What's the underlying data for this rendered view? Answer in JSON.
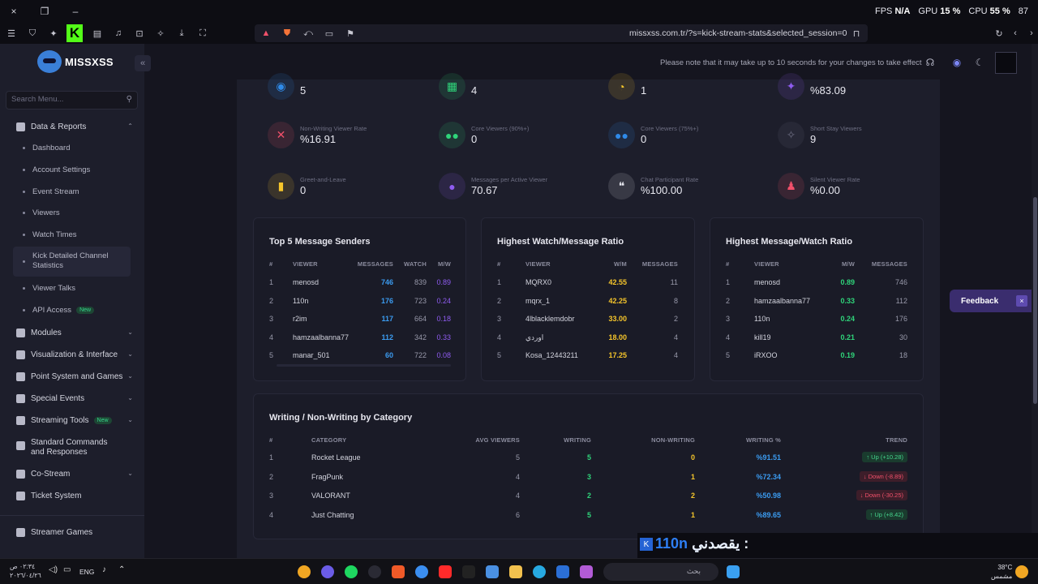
{
  "os_top": {
    "close_icon": "×",
    "window_icon": "❐",
    "minimize_icon": "–",
    "fps_label": "FPS",
    "fps_value": "N/A",
    "gpu_label": "GPU",
    "gpu_value": "15 %",
    "cpu_label": "CPU",
    "cpu_value": "55 %",
    "extra": "87"
  },
  "browser": {
    "url": "missxss.com.tr/?s=kick-stream-stats&selected_session=0"
  },
  "sidebar": {
    "brand": "MISSXSS",
    "collapse_icon": "«",
    "search_placeholder": "Search Menu...",
    "items": [
      {
        "label": "Data & Reports"
      },
      {
        "label": "Dashboard"
      },
      {
        "label": "Account Settings"
      },
      {
        "label": "Event Stream"
      },
      {
        "label": "Viewers"
      },
      {
        "label": "Watch Times"
      },
      {
        "label": "Kick Detailed Channel Statistics"
      },
      {
        "label": "Viewer Talks"
      },
      {
        "label": "API Access",
        "badge": "New"
      },
      {
        "label": "Modules"
      },
      {
        "label": "Visualization & Interface"
      },
      {
        "label": "Point System and Games"
      },
      {
        "label": "Special Events"
      },
      {
        "label": "Streaming Tools",
        "badge": "New"
      },
      {
        "label": "Standard Commands and Responses"
      },
      {
        "label": "Co-Stream"
      },
      {
        "label": "Ticket System"
      },
      {
        "label": "Streamer Games"
      }
    ]
  },
  "header": {
    "notice": "Please note that it may take up to 10 seconds for your changes to take effect"
  },
  "stats": [
    {
      "label": "",
      "value": "5",
      "color": "#2f8ae8"
    },
    {
      "label": "",
      "value": "4",
      "color": "#2fd47a"
    },
    {
      "label": "",
      "value": "1",
      "color": "#f5c52b"
    },
    {
      "label": "",
      "value": "%83.09",
      "color": "#8f5cf0"
    },
    {
      "label": "Non-Writing Viewer Rate",
      "value": "%16.91",
      "color": "#f0506a"
    },
    {
      "label": "Core Viewers (90%+)",
      "value": "0",
      "color": "#2fd47a"
    },
    {
      "label": "Core Viewers (75%+)",
      "value": "0",
      "color": "#2f8ae8"
    },
    {
      "label": "Short Stay Viewers",
      "value": "9",
      "color": "#6b6c80"
    },
    {
      "label": "Greet-and-Leave",
      "value": "0",
      "color": "#f5c52b"
    },
    {
      "label": "Messages per Active Viewer",
      "value": "70.67",
      "color": "#8f5cf0"
    },
    {
      "label": "Chat Participant Rate",
      "value": "%100.00",
      "color": "#e6e6ee"
    },
    {
      "label": "Silent Viewer Rate",
      "value": "%0.00",
      "color": "#f0506a"
    }
  ],
  "top_senders": {
    "title": "Top 5 Message Senders",
    "headers": [
      "#",
      "VIEWER",
      "MESSAGES",
      "WATCH",
      "M/W"
    ],
    "rows": [
      {
        "rank": "1",
        "viewer": "menosd",
        "messages": "746",
        "watch": "839",
        "mw": "0.89"
      },
      {
        "rank": "2",
        "viewer": "110n",
        "messages": "176",
        "watch": "723",
        "mw": "0.24"
      },
      {
        "rank": "3",
        "viewer": "r2im",
        "messages": "117",
        "watch": "664",
        "mw": "0.18"
      },
      {
        "rank": "4",
        "viewer": "hamzaalbanna77",
        "messages": "112",
        "watch": "342",
        "mw": "0.33"
      },
      {
        "rank": "5",
        "viewer": "manar_501",
        "messages": "60",
        "watch": "722",
        "mw": "0.08"
      }
    ]
  },
  "watch_ratio": {
    "title": "Highest Watch/Message Ratio",
    "headers": [
      "#",
      "VIEWER",
      "W/M",
      "MESSAGES"
    ],
    "rows": [
      {
        "rank": "1",
        "viewer": "MQRX0",
        "wm": "42.55",
        "messages": "11"
      },
      {
        "rank": "2",
        "viewer": "mqrx_1",
        "wm": "42.25",
        "messages": "8"
      },
      {
        "rank": "3",
        "viewer": "4lblacklemdobr",
        "wm": "33.00",
        "messages": "2"
      },
      {
        "rank": "4",
        "viewer": "اوردي",
        "wm": "18.00",
        "messages": "4"
      },
      {
        "rank": "5",
        "viewer": "Kosa_12443211",
        "wm": "17.25",
        "messages": "4"
      }
    ]
  },
  "message_ratio": {
    "title": "Highest Message/Watch Ratio",
    "headers": [
      "#",
      "VIEWER",
      "M/W",
      "MESSAGES"
    ],
    "rows": [
      {
        "rank": "1",
        "viewer": "menosd",
        "mw": "0.89",
        "messages": "746"
      },
      {
        "rank": "2",
        "viewer": "hamzaalbanna77",
        "mw": "0.33",
        "messages": "112"
      },
      {
        "rank": "3",
        "viewer": "110n",
        "mw": "0.24",
        "messages": "176"
      },
      {
        "rank": "4",
        "viewer": "kill19",
        "mw": "0.21",
        "messages": "30"
      },
      {
        "rank": "5",
        "viewer": "iRXOO",
        "mw": "0.19",
        "messages": "18"
      }
    ]
  },
  "categories": {
    "title": "Writing / Non-Writing by Category",
    "headers": [
      "#",
      "CATEGORY",
      "AVG VIEWERS",
      "WRITING",
      "NON-WRITING",
      "WRITING %",
      "TREND"
    ],
    "rows": [
      {
        "rank": "1",
        "category": "Rocket League",
        "avg": "5",
        "writing": "5",
        "non_writing": "0",
        "pct": "%91.51",
        "trend": "Up (+10.28)",
        "dir": "up"
      },
      {
        "rank": "2",
        "category": "FragPunk",
        "avg": "4",
        "writing": "3",
        "non_writing": "1",
        "pct": "%72.34",
        "trend": "Down (-8.89)",
        "dir": "down"
      },
      {
        "rank": "3",
        "category": "VALORANT",
        "avg": "4",
        "writing": "2",
        "non_writing": "2",
        "pct": "%50.98",
        "trend": "Down (-30.25)",
        "dir": "down"
      },
      {
        "rank": "4",
        "category": "Just Chatting",
        "avg": "6",
        "writing": "5",
        "non_writing": "1",
        "pct": "%89.65",
        "trend": "Up (+8.42)",
        "dir": "up"
      }
    ]
  },
  "feedback": {
    "label": "Feedback",
    "close": "×"
  },
  "overlay": {
    "name": "110n",
    "arabic": "يقصدني :"
  },
  "taskbar": {
    "time": "٠٢:٣٤ ص",
    "date": "٢٠٢٦/٠٤/٢٦",
    "lang": "ENG",
    "search": "بحث",
    "temp": "38°C",
    "weather": "مشمس"
  }
}
